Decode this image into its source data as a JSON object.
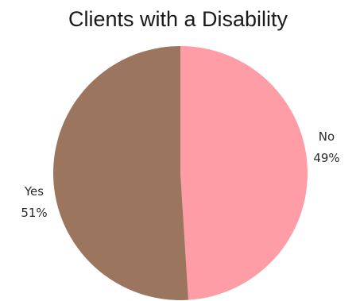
{
  "chart_data": {
    "type": "pie",
    "title": "Clients with a Disability",
    "slices": [
      {
        "label": "No",
        "value": 49,
        "pct_label": "49%",
        "color": "#ff9da7"
      },
      {
        "label": "Yes",
        "value": 51,
        "pct_label": "51%",
        "color": "#9c755f"
      }
    ],
    "start": "12 o'clock",
    "direction": "clockwise",
    "legend": "none"
  }
}
